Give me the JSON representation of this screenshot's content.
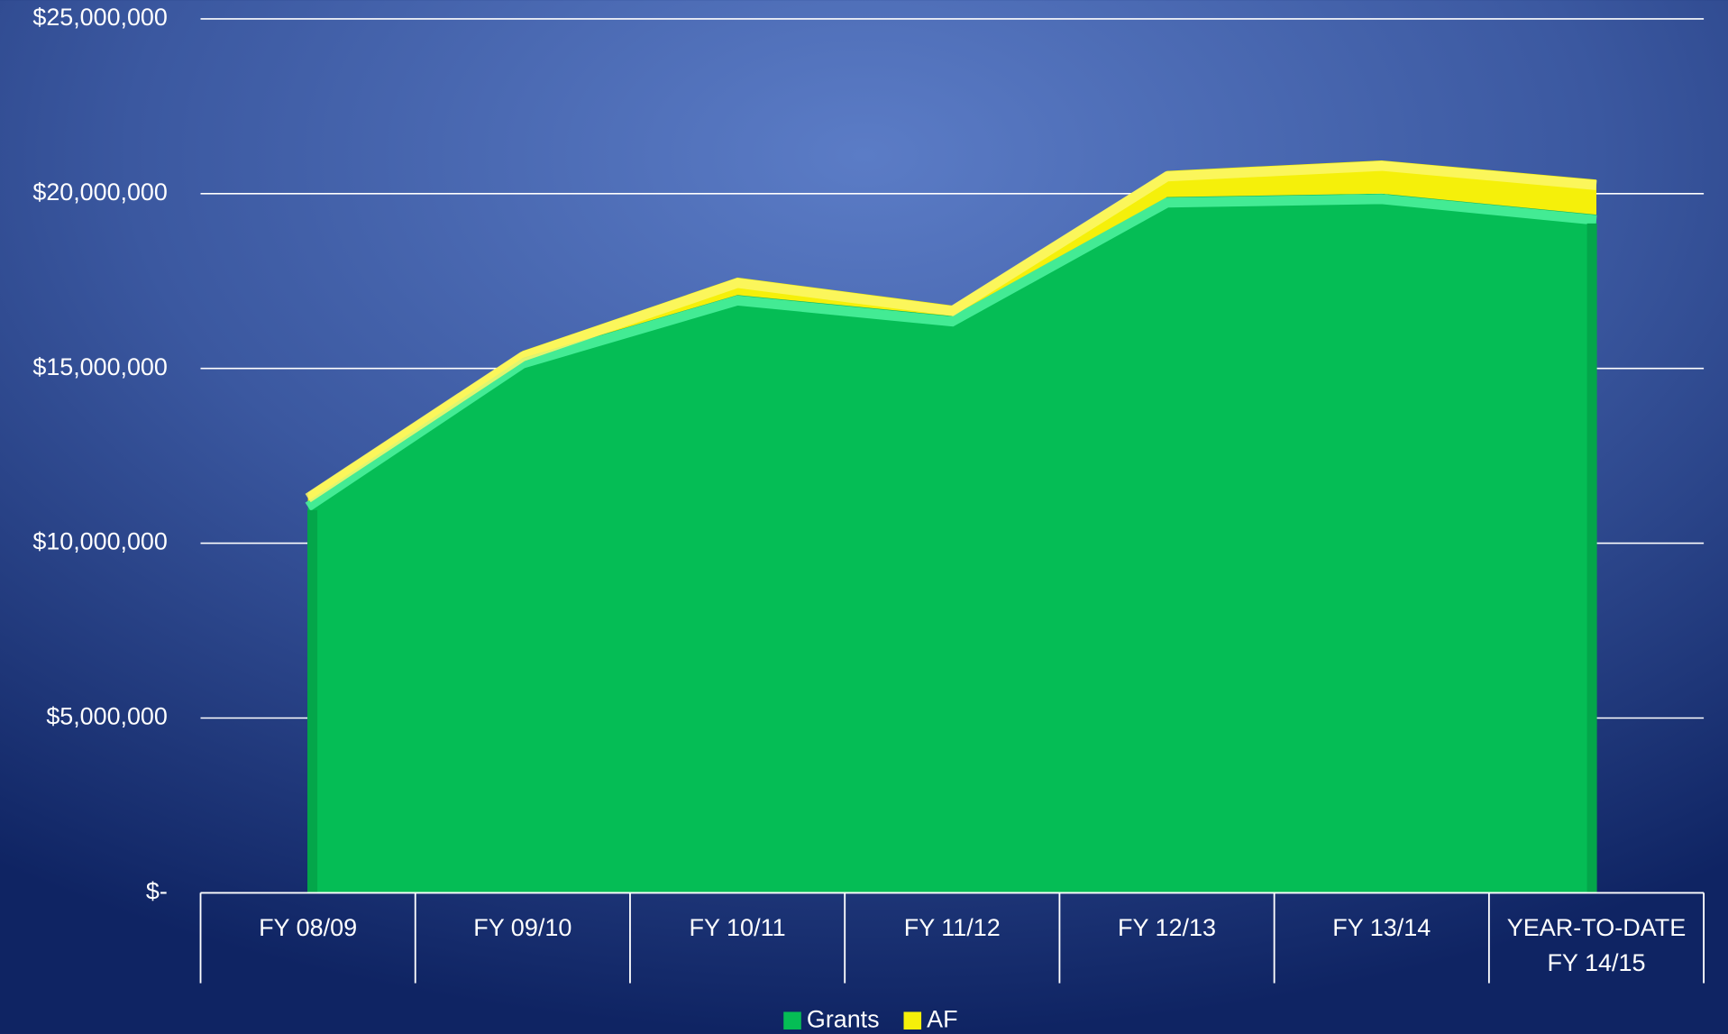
{
  "chart_data": {
    "type": "stacked_area",
    "categories": [
      "FY 08/09",
      "FY 09/10",
      "FY 10/11",
      "FY 11/12",
      "FY 12/13",
      "FY 13/14",
      "YEAR-TO-DATE FY 14/15"
    ],
    "series": [
      {
        "name": "Grants",
        "color": "#05bd55",
        "values": [
          11200000,
          15300000,
          17100000,
          16500000,
          19900000,
          20000000,
          19400000
        ]
      },
      {
        "name": "AF",
        "color": "#f5f00a",
        "values": [
          250000,
          200000,
          500000,
          300000,
          750000,
          950000,
          1000000
        ]
      }
    ],
    "ylim": [
      0,
      25000000
    ],
    "yticks": [
      {
        "value": 0,
        "label": "$-"
      },
      {
        "value": 5000000,
        "label": "$5,000,000"
      },
      {
        "value": 10000000,
        "label": "$10,000,000"
      },
      {
        "value": 15000000,
        "label": "$15,000,000"
      },
      {
        "value": 20000000,
        "label": "$20,000,000"
      },
      {
        "value": 25000000,
        "label": "$25,000,000"
      }
    ],
    "grid": true,
    "legend": "bottom"
  }
}
